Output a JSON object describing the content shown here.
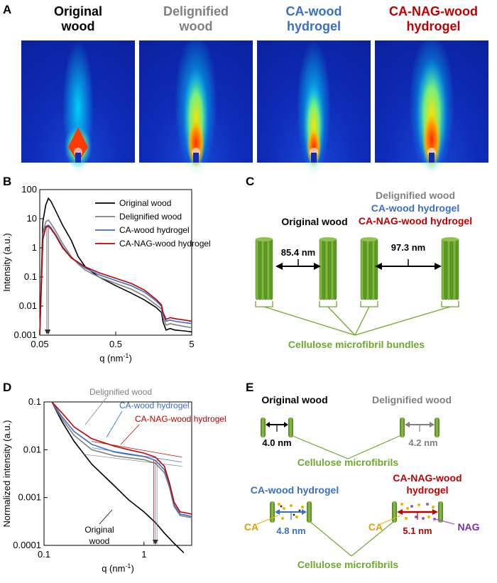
{
  "panel_a": {
    "label": "A",
    "titles": [
      {
        "line1": "Original",
        "line2": "wood",
        "color": "#000000"
      },
      {
        "line1": "Delignified",
        "line2": "wood",
        "color": "#808080"
      },
      {
        "line1": "CA-wood",
        "line2": "hydrogel",
        "color": "#3a6fc9"
      },
      {
        "line1": "CA-NAG-wood",
        "line2": "hydrogel",
        "color": "#c00000"
      }
    ],
    "colors": {
      "background": "#0e2cb8",
      "hot": "#ff2a00",
      "warm": "#ffe000",
      "cool": "#00e0ff"
    }
  },
  "panel_b": {
    "label": "B",
    "xlabel": "q (nm",
    "xlabel_sup": "-1",
    "xlabel_end": ")",
    "ylabel": "Intensity (a.u.)",
    "xticks": [
      "0.05",
      "0.5",
      "5"
    ],
    "yticks": [
      "100",
      "10",
      "1",
      "0.1",
      "0.01",
      "0.001"
    ],
    "legend": [
      "Original wood",
      "Delignified wood",
      "CA-wood hydrogel",
      "CA-NAG-wood hydrogel"
    ]
  },
  "panel_c": {
    "label": "C",
    "left_title": "Original wood",
    "right_titles": [
      {
        "text": "Delignified wood",
        "color": "#808080"
      },
      {
        "text": "CA-wood hydrogel",
        "color": "#3a6fc9"
      },
      {
        "text": "CA-NAG-wood hydrogel",
        "color": "#c00000"
      }
    ],
    "left_distance": "85.4 nm",
    "right_distance": "97.3 nm",
    "caption": "Cellulose microfibril bundles",
    "green": "#6fa82e"
  },
  "panel_d": {
    "label": "D",
    "xlabel": "q (nm",
    "xlabel_sup": "-1",
    "xlabel_end": ")",
    "ylabel": "Normalized intensity (a.u.)",
    "xticks": [
      "0.1",
      "1"
    ],
    "yticks": [
      "0.1",
      "0.01",
      "0.001",
      "0.0001"
    ],
    "annotations": {
      "delignified": "Delignified wood",
      "ca": "CA-wood hydrogel",
      "canag": "CA-NAG-wood hydrogel",
      "orig1": "Original",
      "orig2": "wood"
    }
  },
  "panel_e": {
    "label": "E",
    "orig_title": "Original wood",
    "orig_dist": "4.0 nm",
    "delig_title": "Delignified wood",
    "delig_dist": "4.2 nm",
    "caption_top": "Cellulose microfibrils",
    "ca_title": "CA-wood hydrogel",
    "ca_dist": "4.8 nm",
    "ca_label": "CA",
    "canag_title1": "CA-NAG-wood",
    "canag_title2": "hydrogel",
    "canag_dist": "5.1 nm",
    "ca_label2": "CA",
    "nag_label": "NAG",
    "caption_bottom": "Cellulose microfibrils"
  },
  "chart_data": [
    {
      "type": "line",
      "panel": "B",
      "xlabel": "q (nm-1)",
      "ylabel": "Intensity (a.u.)",
      "xscale": "log",
      "yscale": "log",
      "xlim": [
        0.05,
        5
      ],
      "ylim": [
        0.001,
        100
      ],
      "legend_position": "top-right",
      "series": [
        {
          "name": "Original wood",
          "color": "#000000",
          "x": [
            0.05,
            0.055,
            0.06,
            0.065,
            0.07,
            0.08,
            0.1,
            0.13,
            0.16,
            0.2,
            0.3,
            0.5,
            0.8,
            1.2,
            1.7,
            2.0,
            2.1,
            2.3,
            2.6,
            3.0,
            4.0,
            5.0
          ],
          "y": [
            0.001,
            8,
            30,
            50,
            40,
            20,
            6,
            1.8,
            0.5,
            0.22,
            0.1,
            0.05,
            0.028,
            0.016,
            0.009,
            0.006,
            0.0028,
            0.0015,
            0.0017,
            0.0015,
            0.0014,
            0.0013
          ]
        },
        {
          "name": "Delignified wood",
          "color": "#808080",
          "x": [
            0.05,
            0.055,
            0.06,
            0.065,
            0.07,
            0.08,
            0.1,
            0.13,
            0.16,
            0.2,
            0.3,
            0.5,
            0.8,
            1.2,
            1.7,
            2.0,
            2.1,
            2.3,
            2.6,
            3.0,
            4.0,
            5.0
          ],
          "y": [
            0.001,
            3,
            8,
            9,
            7,
            4,
            1.4,
            0.5,
            0.28,
            0.17,
            0.1,
            0.06,
            0.038,
            0.022,
            0.011,
            0.008,
            0.004,
            0.0022,
            0.0025,
            0.0023,
            0.002,
            0.0018
          ]
        },
        {
          "name": "CA-wood hydrogel",
          "color": "#3a6fc9",
          "x": [
            0.05,
            0.055,
            0.06,
            0.065,
            0.07,
            0.08,
            0.1,
            0.13,
            0.16,
            0.2,
            0.3,
            0.5,
            0.8,
            1.2,
            1.7,
            2.0,
            2.1,
            2.3,
            2.6,
            3.0,
            4.0,
            5.0
          ],
          "y": [
            0.001,
            2,
            5.5,
            6,
            5,
            3,
            1.1,
            0.45,
            0.3,
            0.2,
            0.12,
            0.075,
            0.05,
            0.03,
            0.015,
            0.01,
            0.005,
            0.003,
            0.0033,
            0.003,
            0.0027,
            0.0025
          ]
        },
        {
          "name": "CA-NAG-wood hydrogel",
          "color": "#c00000",
          "x": [
            0.05,
            0.055,
            0.06,
            0.065,
            0.07,
            0.08,
            0.1,
            0.13,
            0.16,
            0.2,
            0.3,
            0.5,
            0.8,
            1.2,
            1.7,
            2.0,
            2.1,
            2.3,
            2.6,
            3.0,
            4.0,
            5.0
          ],
          "y": [
            0.001,
            2,
            5,
            5.5,
            4.5,
            2.8,
            1.0,
            0.45,
            0.32,
            0.22,
            0.14,
            0.09,
            0.06,
            0.035,
            0.017,
            0.011,
            0.006,
            0.0035,
            0.004,
            0.0037,
            0.0033,
            0.003
          ]
        }
      ]
    },
    {
      "type": "line",
      "panel": "D",
      "xlabel": "q (nm-1)",
      "ylabel": "Normalized intensity (a.u.)",
      "xscale": "log",
      "yscale": "log",
      "xlim": [
        0.1,
        3
      ],
      "ylim": [
        0.0001,
        0.1
      ],
      "series": [
        {
          "name": "Original wood",
          "color": "#000000",
          "x": [
            0.12,
            0.15,
            0.2,
            0.3,
            0.5,
            0.7,
            1.0,
            1.3,
            1.6,
            2.0,
            2.5
          ],
          "y": [
            0.1,
            0.04,
            0.015,
            0.005,
            0.0018,
            0.0009,
            0.0005,
            0.0003,
            0.00018,
            0.00011,
            7e-05
          ]
        },
        {
          "name": "Delignified wood",
          "color": "#808080",
          "x": [
            0.12,
            0.15,
            0.2,
            0.3,
            0.5,
            0.7,
            1.0,
            1.3,
            1.6,
            1.8,
            2.0,
            2.3,
            2.6,
            3.0
          ],
          "y": [
            0.1,
            0.045,
            0.02,
            0.01,
            0.0075,
            0.0068,
            0.0062,
            0.0052,
            0.0033,
            0.0016,
            0.00065,
            0.00042,
            0.0004,
            0.00038
          ]
        },
        {
          "name": "CA-wood hydrogel",
          "color": "#3a6fc9",
          "x": [
            0.12,
            0.15,
            0.2,
            0.3,
            0.5,
            0.7,
            1.0,
            1.3,
            1.6,
            1.8,
            2.0,
            2.3,
            2.6,
            3.0
          ],
          "y": [
            0.1,
            0.05,
            0.024,
            0.013,
            0.009,
            0.008,
            0.0072,
            0.006,
            0.0038,
            0.0018,
            0.0007,
            0.00045,
            0.00043,
            0.0004
          ]
        },
        {
          "name": "CA-NAG-wood hydrogel",
          "color": "#c00000",
          "x": [
            0.12,
            0.15,
            0.2,
            0.3,
            0.5,
            0.7,
            1.0,
            1.3,
            1.6,
            1.8,
            2.0,
            2.3,
            2.6,
            3.0
          ],
          "y": [
            0.1,
            0.06,
            0.03,
            0.017,
            0.012,
            0.01,
            0.0085,
            0.007,
            0.0045,
            0.002,
            0.0008,
            0.0005,
            0.00048,
            0.00045
          ]
        }
      ]
    }
  ]
}
